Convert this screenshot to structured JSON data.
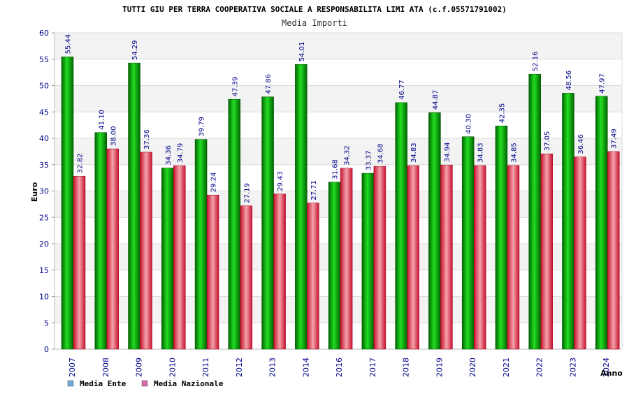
{
  "chart_data": {
    "type": "bar",
    "title": "TUTTI GIU PER TERRA COOPERATIVA SOCIALE A RESPONSABILITA LIMI ATA (c.f.05571791002)",
    "subtitle": "Media Importi",
    "xlabel": "Anno",
    "ylabel": "Euro",
    "ylim": [
      0,
      60
    ],
    "yticks": [
      0,
      5,
      10,
      15,
      20,
      25,
      30,
      35,
      40,
      45,
      50,
      55,
      60
    ],
    "categories": [
      "2007",
      "2008",
      "2009",
      "2010",
      "2011",
      "2012",
      "2013",
      "2014",
      "2016",
      "2017",
      "2018",
      "2019",
      "2020",
      "2021",
      "2022",
      "2023",
      "2024"
    ],
    "series": [
      {
        "name": "Media Ente",
        "color": "#00b400",
        "legend_color": "#6fa8dc",
        "values": [
          55.44,
          41.1,
          54.29,
          34.36,
          39.79,
          47.39,
          47.86,
          54.01,
          31.68,
          33.37,
          46.77,
          44.87,
          40.3,
          42.35,
          52.16,
          48.56,
          47.97
        ],
        "labels": [
          "55.44",
          "41.10",
          "54.29",
          "34.36",
          "39.79",
          "47.39",
          "47.86",
          "54.01",
          "31.68",
          "33.37",
          "46.77",
          "44.87",
          "40.30",
          "42.35",
          "52.16",
          "48.56",
          "47.97"
        ]
      },
      {
        "name": "Media Nazionale",
        "color": "#e8414e",
        "legend_color": "#d96aa7",
        "values": [
          32.82,
          38.0,
          37.36,
          34.79,
          29.24,
          27.19,
          29.43,
          27.71,
          34.32,
          34.68,
          34.83,
          34.94,
          34.83,
          34.85,
          37.05,
          36.46,
          37.49
        ],
        "labels": [
          "32.82",
          "38.00",
          "37.36",
          "34.79",
          "29.24",
          "27.19",
          "29.43",
          "27.71",
          "34.32",
          "34.68",
          "34.83",
          "34.94",
          "34.83",
          "34.85",
          "37.05",
          "36.46",
          "37.49"
        ]
      }
    ],
    "grid": true,
    "legend_position": "bottom-left"
  }
}
